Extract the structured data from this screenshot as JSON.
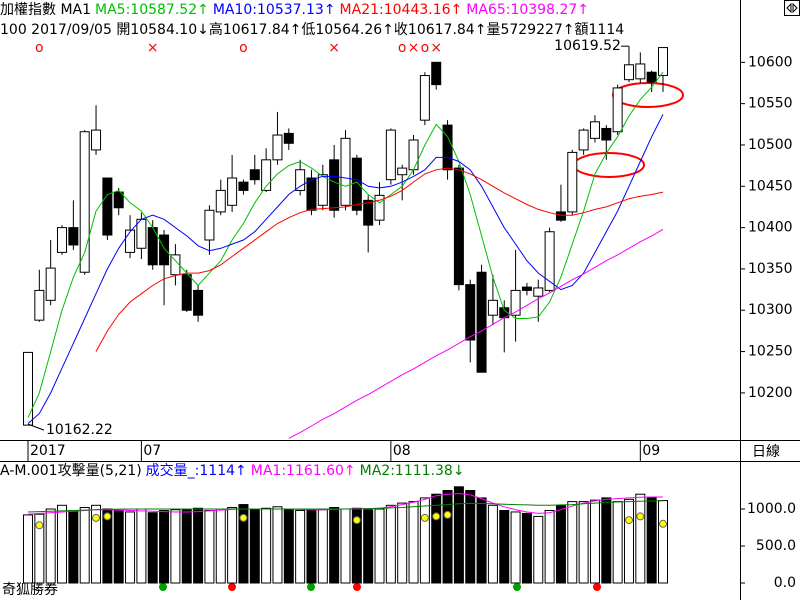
{
  "chart_data": {
    "type": "candlestick",
    "header": [
      {
        "text": "加權指數 MA1",
        "color": "#000000"
      },
      {
        "text": "MA5:10587.52↑",
        "color": "#00c000"
      },
      {
        "text": "MA10:10537.13↑",
        "color": "#0000ff"
      },
      {
        "text": "MA21:10443.16↑",
        "color": "#ff0000"
      },
      {
        "text": "MA65:10398.27↑",
        "color": "#ff00ff"
      }
    ],
    "info": "100 2017/09/05 開10584.10↓高10617.84↑低10564.26↑收10617.84↑量5729227↑額1114",
    "categories": [
      "2017",
      null,
      null,
      null,
      null,
      null,
      null,
      null,
      null,
      null,
      "07",
      null,
      null,
      null,
      null,
      null,
      null,
      null,
      null,
      null,
      null,
      null,
      null,
      null,
      null,
      null,
      null,
      null,
      null,
      null,
      null,
      null,
      "08",
      null,
      null,
      null,
      null,
      null,
      null,
      null,
      null,
      null,
      null,
      null,
      null,
      null,
      null,
      null,
      null,
      null,
      null,
      null,
      null,
      null,
      "09",
      null,
      null
    ],
    "signals": [
      null,
      "o",
      null,
      null,
      null,
      null,
      null,
      null,
      null,
      null,
      null,
      "×",
      null,
      null,
      null,
      null,
      null,
      null,
      null,
      "o",
      null,
      null,
      null,
      null,
      null,
      null,
      null,
      "×",
      null,
      null,
      null,
      null,
      null,
      "o",
      "×",
      "o",
      "×",
      null,
      null,
      null,
      null,
      null,
      null,
      null,
      null,
      null,
      null,
      null,
      null,
      null,
      null,
      null,
      null,
      null,
      null,
      null,
      null
    ],
    "open": [
      10161,
      10288,
      10312,
      10370,
      10400,
      10346,
      10494,
      10460,
      10443,
      10370,
      10375,
      10400,
      10391,
      10343,
      10343,
      10324,
      10385,
      10419,
      10427,
      10455,
      10470,
      10445,
      10482,
      10514,
      10445,
      10460,
      10427,
      10482,
      10427,
      10484,
      10433,
      10409,
      10458,
      10464,
      10470,
      10530,
      10600,
      10524,
      10472,
      10331,
      10346,
      10294,
      10303,
      10294,
      10328,
      10317,
      10324,
      10419,
      10419,
      10494,
      10508,
      10520,
      10516,
      10579,
      10580,
      10588,
      10584.1
    ],
    "high": [
      10249,
      10349,
      10385,
      10403,
      10433,
      10518,
      10548,
      10460,
      10448,
      10415,
      10418,
      10409,
      10397,
      10380,
      10349,
      10330,
      10427,
      10458,
      10488,
      10458,
      10488,
      10496,
      10540,
      10520,
      10482,
      10470,
      10476,
      10500,
      10518,
      10488,
      10439,
      10455,
      10520,
      10476,
      10512,
      10588,
      10600,
      10530,
      10476,
      10337,
      10355,
      10343,
      10312,
      10373,
      10333,
      10337,
      10400,
      10452,
      10494,
      10520,
      10536,
      10524,
      10573,
      10619.52,
      10612,
      10590,
      10617.84
    ],
    "low": [
      10162.22,
      10286,
      10306,
      10367,
      10373,
      10343,
      10488,
      10385,
      10415,
      10363,
      10362,
      10349,
      10306,
      10330,
      10298,
      10286,
      10367,
      10415,
      10419,
      10440,
      10452,
      10443,
      10476,
      10494,
      10439,
      10415,
      10421,
      10412,
      10421,
      10415,
      10370,
      10403,
      10452,
      10433,
      10464,
      10524,
      10567,
      10458,
      10324,
      10237,
      10225,
      10282,
      10249,
      10262,
      10318,
      10286,
      10322,
      10407,
      10415,
      10488,
      10503,
      10482,
      10512,
      10576,
      10575,
      10564,
      10564.26
    ],
    "close": [
      10249,
      10324,
      10351,
      10400,
      10379,
      10516,
      10518,
      10391,
      10424,
      10397,
      10410,
      10355,
      10355,
      10367,
      10300,
      10294,
      10421,
      10445,
      10460,
      10445,
      10458,
      10482,
      10512,
      10502,
      10470,
      10421,
      10464,
      10421,
      10508,
      10421,
      10403,
      10439,
      10518,
      10472,
      10506,
      10584,
      10573,
      10470,
      10331,
      10264,
      10225,
      10312,
      10291,
      10324,
      10324,
      10327,
      10395,
      10409,
      10491,
      10518,
      10528,
      10506,
      10569,
      10597,
      10598,
      10576,
      10617.84
    ],
    "max_label": "10619.52",
    "min_label": "10162.22",
    "ma_series": [
      {
        "name": "MA5",
        "color": "#00c000",
        "values": [
          10170,
          10200,
          10250,
          10300,
          10340,
          10370,
          10420,
          10440,
          10445,
          10430,
          10420,
          10400,
          10375,
          10360,
          10345,
          10330,
          10345,
          10360,
          10385,
          10405,
          10430,
          10450,
          10465,
          10475,
          10480,
          10472,
          10462,
          10455,
          10450,
          10455,
          10440,
          10430,
          10440,
          10450,
          10470,
          10500,
          10525,
          10510,
          10480,
          10440,
          10390,
          10340,
          10300,
          10290,
          10290,
          10292,
          10310,
          10340,
          10380,
          10420,
          10465,
          10490,
          10510,
          10535,
          10555,
          10570,
          10588
        ]
      },
      {
        "name": "MA10",
        "color": "#0000ff",
        "values": [
          10163,
          10175,
          10200,
          10230,
          10260,
          10290,
          10320,
          10350,
          10375,
          10395,
          10410,
          10415,
          10410,
          10400,
          10390,
          10378,
          10372,
          10375,
          10380,
          10385,
          10395,
          10410,
          10425,
          10440,
          10450,
          10458,
          10462,
          10462,
          10460,
          10458,
          10450,
          10448,
          10450,
          10455,
          10462,
          10470,
          10485,
          10485,
          10480,
          10470,
          10450,
          10425,
          10400,
          10380,
          10360,
          10345,
          10335,
          10325,
          10330,
          10345,
          10370,
          10395,
          10420,
          10450,
          10480,
          10510,
          10537
        ]
      },
      {
        "name": "MA21",
        "color": "#ff0000",
        "values": [
          null,
          null,
          null,
          null,
          null,
          null,
          10250,
          10275,
          10295,
          10310,
          10320,
          10330,
          10338,
          10342,
          10345,
          10345,
          10348,
          10355,
          10365,
          10375,
          10385,
          10395,
          10405,
          10412,
          10418,
          10422,
          10423,
          10424,
          10425,
          10428,
          10430,
          10433,
          10438,
          10445,
          10455,
          10465,
          10470,
          10472,
          10470,
          10465,
          10458,
          10450,
          10442,
          10435,
          10428,
          10422,
          10418,
          10415,
          10415,
          10418,
          10422,
          10425,
          10430,
          10435,
          10438,
          10440,
          10443
        ]
      },
      {
        "name": "MA65",
        "color": "#ff00ff",
        "values": [
          null,
          null,
          null,
          null,
          null,
          null,
          null,
          null,
          null,
          null,
          null,
          null,
          null,
          null,
          null,
          null,
          null,
          null,
          null,
          null,
          null,
          null,
          null,
          10145,
          10152,
          10160,
          10168,
          10175,
          10183,
          10191,
          10198,
          10206,
          10214,
          10222,
          10229,
          10237,
          10245,
          10252,
          10260,
          10268,
          10275,
          10283,
          10291,
          10298,
          10306,
          10314,
          10321,
          10329,
          10337,
          10344,
          10352,
          10360,
          10367,
          10375,
          10383,
          10390,
          10398
        ]
      }
    ],
    "ylim": [
      10143,
      10627
    ],
    "yticks": [
      10200,
      10250,
      10300,
      10350,
      10400,
      10450,
      10500,
      10550,
      10600
    ],
    "period_label": "日線",
    "up_color": "#ffffff",
    "down_color": "#000000",
    "volume": {
      "header": [
        {
          "text": "A-M.001攻擊量(5,21)",
          "color": "#000000"
        },
        {
          "text": "成交量_:1114↑",
          "color": "#0000ff"
        },
        {
          "text": "MA1:1161.60↑",
          "color": "#ff00ff"
        },
        {
          "text": "MA2:1111.38↓",
          "color": "#008000"
        }
      ],
      "values": [
        920,
        930,
        1000,
        1050,
        980,
        1020,
        1050,
        1000,
        980,
        960,
        1000,
        950,
        980,
        990,
        1000,
        1010,
        980,
        1000,
        1020,
        1060,
        1000,
        1010,
        1030,
        1000,
        980,
        1000,
        990,
        1020,
        1000,
        1010,
        990,
        1000,
        1050,
        1080,
        1100,
        1150,
        1200,
        1250,
        1300,
        1250,
        1150,
        1050,
        980,
        960,
        940,
        900,
        980,
        1050,
        1100,
        1100,
        1120,
        1150,
        1100,
        1130,
        1200,
        1150,
        1114
      ],
      "dots": [
        null,
        780,
        null,
        null,
        null,
        null,
        880,
        900,
        null,
        null,
        null,
        null,
        null,
        null,
        null,
        null,
        null,
        null,
        null,
        880,
        null,
        null,
        null,
        null,
        null,
        null,
        null,
        null,
        null,
        850,
        null,
        null,
        null,
        null,
        null,
        880,
        900,
        920,
        null,
        null,
        null,
        null,
        null,
        null,
        null,
        null,
        null,
        null,
        null,
        null,
        null,
        null,
        null,
        850,
        900,
        null,
        800
      ],
      "dot_color": "#ffff00",
      "ma_series": [
        {
          "name": "MA1",
          "color": "#ff00ff",
          "values": [
            930,
            940,
            950,
            960,
            970,
            980,
            990,
            990,
            985,
            980,
            975,
            970,
            965,
            960,
            960,
            965,
            975,
            985,
            995,
            1000,
            1000,
            1000,
            1000,
            1000,
            995,
            990,
            990,
            995,
            1000,
            1005,
            1005,
            1010,
            1030,
            1060,
            1090,
            1130,
            1180,
            1200,
            1210,
            1190,
            1140,
            1080,
            1030,
            990,
            960,
            940,
            950,
            990,
            1040,
            1080,
            1110,
            1130,
            1140,
            1150,
            1160,
            1162,
            1161.6
          ]
        },
        {
          "name": "MA2",
          "color": "#008000",
          "values": [
            960,
            965,
            970,
            975,
            980,
            985,
            990,
            995,
            998,
            1000,
            1000,
            1000,
            1000,
            1000,
            1000,
            1000,
            1000,
            1000,
            1000,
            1000,
            1000,
            1000,
            1000,
            1000,
            1000,
            1000,
            1000,
            1000,
            1000,
            1000,
            1005,
            1010,
            1015,
            1020,
            1030,
            1040,
            1050,
            1060,
            1070,
            1075,
            1075,
            1070,
            1065,
            1060,
            1055,
            1050,
            1050,
            1055,
            1060,
            1070,
            1080,
            1090,
            1095,
            1100,
            1105,
            1108,
            1111.38
          ]
        }
      ],
      "ylim": [
        0,
        1600
      ],
      "yticks": [
        {
          "value": 0,
          "label": "0.0"
        },
        {
          "value": 500,
          "label": "500.0"
        },
        {
          "value": 1000,
          "label": "1000.0"
        }
      ]
    },
    "footer": "奇狐勝券"
  }
}
